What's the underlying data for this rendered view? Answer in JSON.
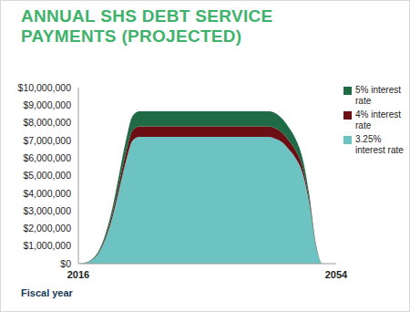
{
  "chart_data": {
    "type": "area",
    "title": "ANNUAL SHS DEBT SERVICE PAYMENTS (PROJECTED)",
    "x_label": "Fiscal year",
    "categories": [
      "2016",
      null,
      null,
      null,
      null,
      null,
      null,
      null,
      null,
      null,
      null,
      null,
      null,
      null,
      null,
      null,
      null,
      null,
      null,
      null,
      null,
      null,
      null,
      null,
      null,
      null,
      null,
      null,
      null,
      null,
      null,
      null,
      null,
      null,
      null,
      null,
      null,
      null,
      "2054"
    ],
    "series": [
      {
        "name": "3.25% interest rate",
        "color": "#6cc3c2",
        "values": [
          0,
          50000,
          200000,
          600000,
          1400000,
          2600000,
          4200000,
          5800000,
          7000000,
          7200000,
          7200000,
          7200000,
          7200000,
          7200000,
          7200000,
          7200000,
          7200000,
          7200000,
          7200000,
          7200000,
          7200000,
          7200000,
          7200000,
          7200000,
          7200000,
          7200000,
          7200000,
          7200000,
          7200000,
          7100000,
          6900000,
          6500000,
          6000000,
          5200000,
          3500000,
          1000000,
          0,
          0,
          0
        ]
      },
      {
        "name": "4% interest rate",
        "color": "#6b0f14",
        "values": [
          0,
          5000,
          20000,
          50000,
          120000,
          220000,
          350000,
          480000,
          580000,
          600000,
          600000,
          600000,
          600000,
          600000,
          600000,
          600000,
          600000,
          600000,
          600000,
          600000,
          600000,
          600000,
          600000,
          600000,
          600000,
          600000,
          600000,
          600000,
          600000,
          600000,
          550000,
          500000,
          450000,
          350000,
          200000,
          50000,
          0,
          0,
          0
        ]
      },
      {
        "name": "5% interest rate",
        "color": "#1f6b46",
        "values": [
          0,
          10000,
          30000,
          80000,
          170000,
          300000,
          500000,
          700000,
          820000,
          850000,
          850000,
          850000,
          850000,
          850000,
          850000,
          850000,
          850000,
          850000,
          850000,
          850000,
          850000,
          850000,
          850000,
          850000,
          850000,
          850000,
          850000,
          850000,
          850000,
          850000,
          800000,
          750000,
          650000,
          500000,
          300000,
          100000,
          0,
          0,
          0
        ]
      }
    ],
    "ylim": [
      0,
      10000000
    ],
    "yticks": [
      {
        "value": 0,
        "label": "$0"
      },
      {
        "value": 1000000,
        "label": "$1,000,000"
      },
      {
        "value": 2000000,
        "label": "$2,000,000"
      },
      {
        "value": 3000000,
        "label": "$3,000,000"
      },
      {
        "value": 4000000,
        "label": "$4,000,000"
      },
      {
        "value": 5000000,
        "label": "$5,000,000"
      },
      {
        "value": 6000000,
        "label": "$6,000,000"
      },
      {
        "value": 7000000,
        "label": "$7,000,000"
      },
      {
        "value": 8000000,
        "label": "$8,000,000"
      },
      {
        "value": 9000000,
        "label": "$9,000,000"
      },
      {
        "value": 10000000,
        "label": "$10,000,000"
      }
    ],
    "stacked": true,
    "grid": false,
    "legend": "upper right"
  }
}
